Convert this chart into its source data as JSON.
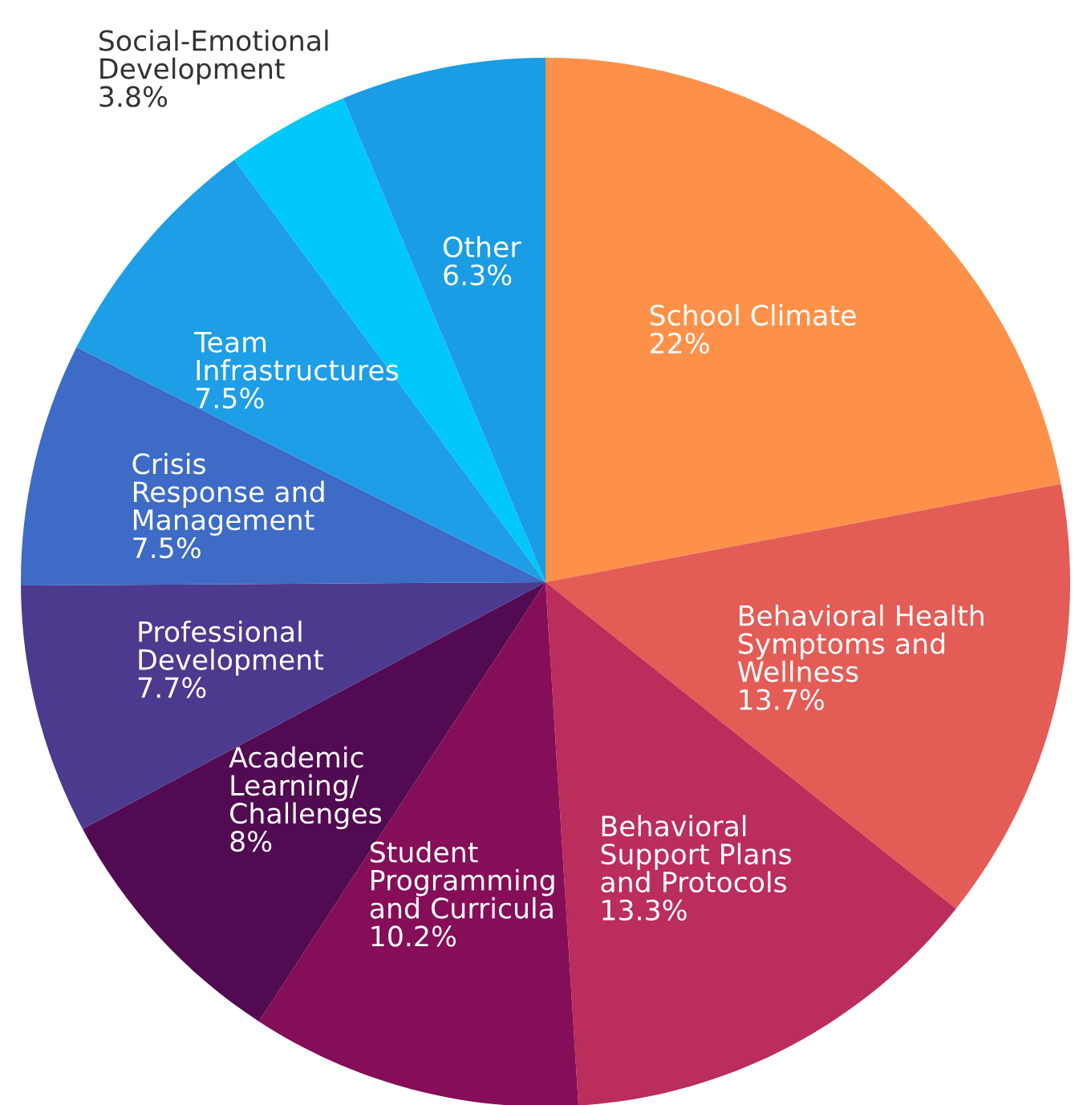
{
  "chart_data": {
    "type": "pie",
    "categories": [
      "School Climate",
      "Behavioral Health\nSymptoms and\nWellness",
      "Behavioral\nSupport Plans\nand Protocols",
      "Student\nProgramming\nand Curricula",
      "Academic\nLearning/\nChallenges",
      "Professional\nDevelopment",
      "Crisis\nResponse and\nManagement",
      "Team\nInfrastructures",
      "Social-Emotional\nDevelopment",
      "Other"
    ],
    "values": [
      22,
      13.7,
      13.3,
      10.2,
      8,
      7.7,
      7.5,
      7.5,
      3.8,
      6.3
    ],
    "value_labels": [
      "22%",
      "13.7%",
      "13.3%",
      "10.2%",
      "8%",
      "7.7%",
      "7.5%",
      "7.5%",
      "3.8%",
      "6.3%"
    ],
    "colors": [
      "#fd9149",
      "#e35c55",
      "#bb2d5a",
      "#860d58",
      "#520a52",
      "#4b3a8e",
      "#3d6bc6",
      "#1d9ee6",
      "#00c8f8",
      "#1a9de4"
    ]
  }
}
